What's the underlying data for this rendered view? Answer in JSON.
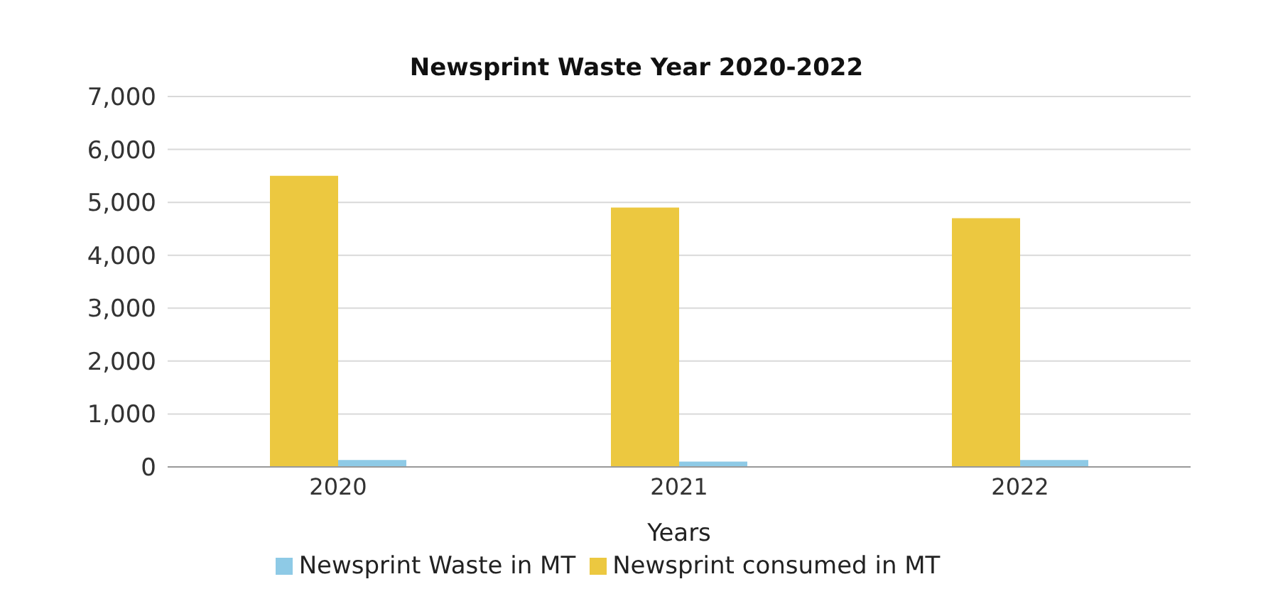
{
  "chart_data": {
    "type": "bar",
    "title": "Newsprint Waste Year 2020-2022",
    "xlabel": "Years",
    "categories": [
      "2020",
      "2021",
      "2022"
    ],
    "series": [
      {
        "name": "Newsprint consumed in MT",
        "color": "#ecc840",
        "values": [
          5500,
          4900,
          4700
        ]
      },
      {
        "name": "Newsprint Waste in MT",
        "color": "#8ecae6",
        "values": [
          130,
          100,
          130
        ]
      }
    ],
    "ylim": [
      0,
      7000
    ],
    "yticks": [
      {
        "value": 0,
        "label": "0"
      },
      {
        "value": 1000,
        "label": "1,000"
      },
      {
        "value": 2000,
        "label": "2,000"
      },
      {
        "value": 3000,
        "label": "3,000"
      },
      {
        "value": 4000,
        "label": "4,000"
      },
      {
        "value": 5000,
        "label": "5,000"
      },
      {
        "value": 6000,
        "label": "6,000"
      },
      {
        "value": 7000,
        "label": "7,000"
      }
    ],
    "grid": "y",
    "legend": "bottom"
  }
}
